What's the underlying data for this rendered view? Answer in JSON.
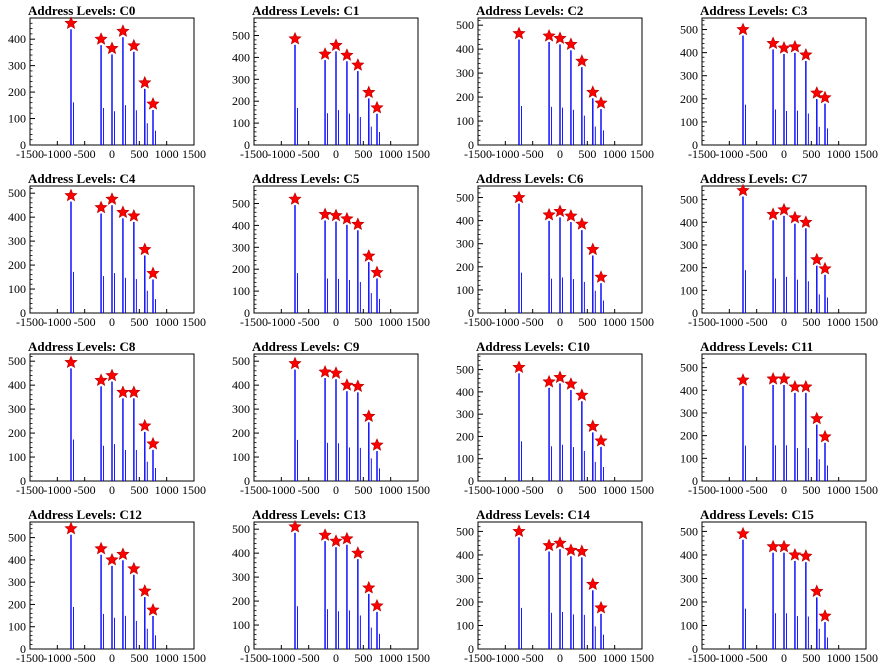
{
  "chart_data": [
    {
      "type": "bar",
      "title": "Address Levels: C0",
      "xlim": [
        -1500,
        1500
      ],
      "ylim": [
        0,
        480
      ],
      "yticks": [
        0,
        100,
        200,
        300,
        400
      ],
      "xticks": [
        -1500,
        -1000,
        -500,
        0,
        500,
        1000,
        1500
      ],
      "series": [
        {
          "values": [
            {
              "x": -750,
              "y": 460
            },
            {
              "x": -200,
              "y": 400
            },
            {
              "x": 0,
              "y": 365
            },
            {
              "x": 200,
              "y": 430
            },
            {
              "x": 400,
              "y": 375
            },
            {
              "x": 600,
              "y": 235
            },
            {
              "x": 750,
              "y": 155
            }
          ]
        }
      ]
    },
    {
      "type": "bar",
      "title": "Address Levels: C1",
      "xlim": [
        -1500,
        1500
      ],
      "ylim": [
        0,
        580
      ],
      "yticks": [
        0,
        100,
        200,
        300,
        400,
        500
      ],
      "xticks": [
        -1500,
        -1000,
        -500,
        0,
        500,
        1000,
        1500
      ],
      "series": [
        {
          "values": [
            {
              "x": -750,
              "y": 485
            },
            {
              "x": -200,
              "y": 415
            },
            {
              "x": 0,
              "y": 455
            },
            {
              "x": 200,
              "y": 410
            },
            {
              "x": 400,
              "y": 365
            },
            {
              "x": 600,
              "y": 240
            },
            {
              "x": 750,
              "y": 170
            }
          ]
        }
      ]
    },
    {
      "type": "bar",
      "title": "Address Levels: C2",
      "xlim": [
        -1500,
        1500
      ],
      "ylim": [
        0,
        530
      ],
      "yticks": [
        0,
        100,
        200,
        300,
        400,
        500
      ],
      "xticks": [
        -1500,
        -1000,
        -500,
        0,
        500,
        1000,
        1500
      ],
      "series": [
        {
          "values": [
            {
              "x": -750,
              "y": 465
            },
            {
              "x": -200,
              "y": 455
            },
            {
              "x": 0,
              "y": 445
            },
            {
              "x": 200,
              "y": 420
            },
            {
              "x": 400,
              "y": 350
            },
            {
              "x": 600,
              "y": 220
            },
            {
              "x": 750,
              "y": 175
            }
          ]
        }
      ]
    },
    {
      "type": "bar",
      "title": "Address Levels: C3",
      "xlim": [
        -1500,
        1500
      ],
      "ylim": [
        0,
        550
      ],
      "yticks": [
        0,
        100,
        200,
        300,
        400,
        500
      ],
      "xticks": [
        -1500,
        -1000,
        -500,
        0,
        500,
        1000,
        1500
      ],
      "series": [
        {
          "values": [
            {
              "x": -750,
              "y": 500
            },
            {
              "x": -200,
              "y": 440
            },
            {
              "x": 0,
              "y": 420
            },
            {
              "x": 200,
              "y": 425
            },
            {
              "x": 400,
              "y": 390
            },
            {
              "x": 600,
              "y": 225
            },
            {
              "x": 750,
              "y": 205
            }
          ]
        }
      ]
    },
    {
      "type": "bar",
      "title": "Address Levels: C4",
      "xlim": [
        -1500,
        1500
      ],
      "ylim": [
        0,
        530
      ],
      "yticks": [
        0,
        100,
        200,
        300,
        400,
        500
      ],
      "xticks": [
        -1500,
        -1000,
        -500,
        0,
        500,
        1000,
        1500
      ],
      "series": [
        {
          "values": [
            {
              "x": -750,
              "y": 490
            },
            {
              "x": -200,
              "y": 440
            },
            {
              "x": 0,
              "y": 475
            },
            {
              "x": 200,
              "y": 420
            },
            {
              "x": 400,
              "y": 405
            },
            {
              "x": 600,
              "y": 265
            },
            {
              "x": 750,
              "y": 165
            }
          ]
        }
      ]
    },
    {
      "type": "bar",
      "title": "Address Levels: C5",
      "xlim": [
        -1500,
        1500
      ],
      "ylim": [
        0,
        580
      ],
      "yticks": [
        0,
        100,
        200,
        300,
        400,
        500
      ],
      "xticks": [
        -1500,
        -1000,
        -500,
        0,
        500,
        1000,
        1500
      ],
      "series": [
        {
          "values": [
            {
              "x": -750,
              "y": 520
            },
            {
              "x": -200,
              "y": 450
            },
            {
              "x": 0,
              "y": 445
            },
            {
              "x": 200,
              "y": 430
            },
            {
              "x": 400,
              "y": 405
            },
            {
              "x": 600,
              "y": 260
            },
            {
              "x": 750,
              "y": 185
            }
          ]
        }
      ]
    },
    {
      "type": "bar",
      "title": "Address Levels: C6",
      "xlim": [
        -1500,
        1500
      ],
      "ylim": [
        0,
        550
      ],
      "yticks": [
        0,
        100,
        200,
        300,
        400,
        500
      ],
      "xticks": [
        -1500,
        -1000,
        -500,
        0,
        500,
        1000,
        1500
      ],
      "series": [
        {
          "values": [
            {
              "x": -750,
              "y": 500
            },
            {
              "x": -200,
              "y": 425
            },
            {
              "x": 0,
              "y": 440
            },
            {
              "x": 200,
              "y": 420
            },
            {
              "x": 400,
              "y": 385
            },
            {
              "x": 600,
              "y": 275
            },
            {
              "x": 750,
              "y": 155
            }
          ]
        }
      ]
    },
    {
      "type": "bar",
      "title": "Address Levels: C7",
      "xlim": [
        -1500,
        1500
      ],
      "ylim": [
        0,
        560
      ],
      "yticks": [
        0,
        100,
        200,
        300,
        400,
        500
      ],
      "xticks": [
        -1500,
        -1000,
        -500,
        0,
        500,
        1000,
        1500
      ],
      "series": [
        {
          "values": [
            {
              "x": -750,
              "y": 540
            },
            {
              "x": -200,
              "y": 435
            },
            {
              "x": 0,
              "y": 455
            },
            {
              "x": 200,
              "y": 420
            },
            {
              "x": 400,
              "y": 400
            },
            {
              "x": 600,
              "y": 235
            },
            {
              "x": 750,
              "y": 195
            }
          ]
        }
      ]
    },
    {
      "type": "bar",
      "title": "Address Levels: C8",
      "xlim": [
        -1500,
        1500
      ],
      "ylim": [
        0,
        530
      ],
      "yticks": [
        0,
        100,
        200,
        300,
        400,
        500
      ],
      "xticks": [
        -1500,
        -1000,
        -500,
        0,
        500,
        1000,
        1500
      ],
      "series": [
        {
          "values": [
            {
              "x": -750,
              "y": 495
            },
            {
              "x": -200,
              "y": 420
            },
            {
              "x": 0,
              "y": 440
            },
            {
              "x": 200,
              "y": 370
            },
            {
              "x": 400,
              "y": 370
            },
            {
              "x": 600,
              "y": 230
            },
            {
              "x": 750,
              "y": 155
            }
          ]
        }
      ]
    },
    {
      "type": "bar",
      "title": "Address Levels: C9",
      "xlim": [
        -1500,
        1500
      ],
      "ylim": [
        0,
        530
      ],
      "yticks": [
        0,
        100,
        200,
        300,
        400,
        500
      ],
      "xticks": [
        -1500,
        -1000,
        -500,
        0,
        500,
        1000,
        1500
      ],
      "series": [
        {
          "values": [
            {
              "x": -750,
              "y": 490
            },
            {
              "x": -200,
              "y": 455
            },
            {
              "x": 0,
              "y": 450
            },
            {
              "x": 200,
              "y": 400
            },
            {
              "x": 400,
              "y": 395
            },
            {
              "x": 600,
              "y": 270
            },
            {
              "x": 750,
              "y": 150
            }
          ]
        }
      ]
    },
    {
      "type": "bar",
      "title": "Address Levels: C10",
      "xlim": [
        -1500,
        1500
      ],
      "ylim": [
        0,
        570
      ],
      "yticks": [
        0,
        100,
        200,
        300,
        400,
        500
      ],
      "xticks": [
        -1500,
        -1000,
        -500,
        0,
        500,
        1000,
        1500
      ],
      "series": [
        {
          "values": [
            {
              "x": -750,
              "y": 510
            },
            {
              "x": -200,
              "y": 445
            },
            {
              "x": 0,
              "y": 465
            },
            {
              "x": 200,
              "y": 435
            },
            {
              "x": 400,
              "y": 385
            },
            {
              "x": 600,
              "y": 245
            },
            {
              "x": 750,
              "y": 180
            }
          ]
        }
      ]
    },
    {
      "type": "bar",
      "title": "Address Levels: C11",
      "xlim": [
        -1500,
        1500
      ],
      "ylim": [
        0,
        560
      ],
      "yticks": [
        0,
        100,
        200,
        300,
        400,
        500
      ],
      "xticks": [
        -1500,
        -1000,
        -500,
        0,
        500,
        1000,
        1500
      ],
      "series": [
        {
          "values": [
            {
              "x": -750,
              "y": 445
            },
            {
              "x": -200,
              "y": 450
            },
            {
              "x": 0,
              "y": 450
            },
            {
              "x": 200,
              "y": 415
            },
            {
              "x": 400,
              "y": 415
            },
            {
              "x": 600,
              "y": 275
            },
            {
              "x": 750,
              "y": 195
            }
          ]
        }
      ]
    },
    {
      "type": "bar",
      "title": "Address Levels: C12",
      "xlim": [
        -1500,
        1500
      ],
      "ylim": [
        0,
        570
      ],
      "yticks": [
        0,
        100,
        200,
        300,
        400,
        500
      ],
      "xticks": [
        -1500,
        -1000,
        -500,
        0,
        500,
        1000,
        1500
      ],
      "series": [
        {
          "values": [
            {
              "x": -750,
              "y": 540
            },
            {
              "x": -200,
              "y": 450
            },
            {
              "x": 0,
              "y": 400
            },
            {
              "x": 200,
              "y": 425
            },
            {
              "x": 400,
              "y": 360
            },
            {
              "x": 600,
              "y": 260
            },
            {
              "x": 750,
              "y": 175
            }
          ]
        }
      ]
    },
    {
      "type": "bar",
      "title": "Address Levels: C13",
      "xlim": [
        -1500,
        1500
      ],
      "ylim": [
        0,
        530
      ],
      "yticks": [
        0,
        100,
        200,
        300,
        400,
        500
      ],
      "xticks": [
        -1500,
        -1000,
        -500,
        0,
        500,
        1000,
        1500
      ],
      "series": [
        {
          "values": [
            {
              "x": -750,
              "y": 510
            },
            {
              "x": -200,
              "y": 475
            },
            {
              "x": 0,
              "y": 450
            },
            {
              "x": 200,
              "y": 460
            },
            {
              "x": 400,
              "y": 400
            },
            {
              "x": 600,
              "y": 255
            },
            {
              "x": 750,
              "y": 180
            }
          ]
        }
      ]
    },
    {
      "type": "bar",
      "title": "Address Levels: C14",
      "xlim": [
        -1500,
        1500
      ],
      "ylim": [
        0,
        540
      ],
      "yticks": [
        0,
        100,
        200,
        300,
        400,
        500
      ],
      "xticks": [
        -1500,
        -1000,
        -500,
        0,
        500,
        1000,
        1500
      ],
      "series": [
        {
          "values": [
            {
              "x": -750,
              "y": 500
            },
            {
              "x": -200,
              "y": 440
            },
            {
              "x": 0,
              "y": 450
            },
            {
              "x": 200,
              "y": 420
            },
            {
              "x": 400,
              "y": 415
            },
            {
              "x": 600,
              "y": 275
            },
            {
              "x": 750,
              "y": 175
            }
          ]
        }
      ]
    },
    {
      "type": "bar",
      "title": "Address Levels: C15",
      "xlim": [
        -1500,
        1500
      ],
      "ylim": [
        0,
        540
      ],
      "yticks": [
        0,
        100,
        200,
        300,
        400,
        500
      ],
      "xticks": [
        -1500,
        -1000,
        -500,
        0,
        500,
        1000,
        1500
      ],
      "series": [
        {
          "values": [
            {
              "x": -750,
              "y": 490
            },
            {
              "x": -200,
              "y": 435
            },
            {
              "x": 0,
              "y": 435
            },
            {
              "x": 200,
              "y": 400
            },
            {
              "x": 400,
              "y": 395
            },
            {
              "x": 600,
              "y": 245
            },
            {
              "x": 750,
              "y": 140
            }
          ]
        }
      ]
    }
  ],
  "colors": {
    "bar": "#0000ff",
    "marker_fill": "#ff0000",
    "marker_stroke": "#b00000",
    "axis": "#000000"
  },
  "marker": "star"
}
